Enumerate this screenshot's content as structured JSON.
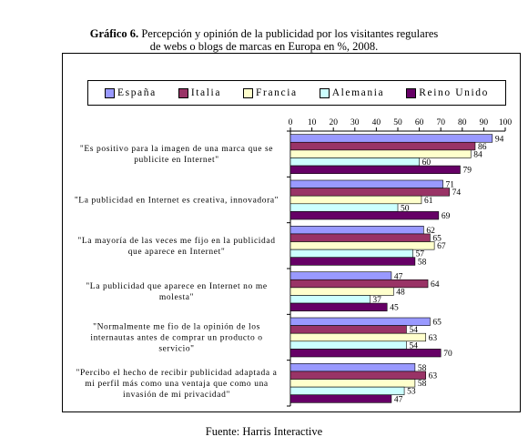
{
  "title": {
    "lead": "Gráfico 6.",
    "line1": "Percepción y opinión de la publicidad por los visitantes regulares",
    "line2": "de webs o blogs de marcas en Europa en %, 2008."
  },
  "source": "Fuente: Harris Interactive",
  "chart_data": {
    "type": "bar",
    "orientation": "horizontal",
    "title": "Percepción y opinión de la publicidad por los visitantes regulares de webs o blogs de marcas en Europa en %, 2008.",
    "xlim": [
      0,
      100
    ],
    "ticks": [
      "0",
      "10",
      "20",
      "30",
      "40",
      "50",
      "60",
      "70",
      "80",
      "90",
      "100"
    ],
    "legend_position": "top",
    "categories": [
      [
        "\"Es positivo para la imagen de una marca que se",
        "publicite en Internet\""
      ],
      [
        "\"La publicidad en Internet es creativa, innovadora\""
      ],
      [
        "\"La mayoría de las veces me fijo en la publicidad",
        "que aparece en Internet\""
      ],
      [
        "\"La publicidad que aparece en Internet no me",
        "molesta\""
      ],
      [
        "\"Normalmente me fio de la opinión de los",
        "internautas antes de comprar un producto o",
        "servicio\""
      ],
      [
        "\"Percibo el hecho de recibir publicidad adaptada a",
        "mi perfil más como una ventaja que como una",
        "invasión de mi privacidad\""
      ]
    ],
    "series": [
      {
        "name": "España",
        "color": "#9999ff",
        "values": [
          94,
          71,
          62,
          47,
          65,
          58
        ]
      },
      {
        "name": "Italia",
        "color": "#993366",
        "values": [
          86,
          74,
          65,
          64,
          54,
          63
        ]
      },
      {
        "name": "Francia",
        "color": "#ffffcc",
        "values": [
          84,
          61,
          67,
          48,
          63,
          58
        ]
      },
      {
        "name": "Alemania",
        "color": "#ccffff",
        "values": [
          60,
          50,
          57,
          37,
          54,
          53
        ]
      },
      {
        "name": "Reino Unido",
        "color": "#660066",
        "values": [
          79,
          69,
          58,
          45,
          70,
          47
        ]
      }
    ]
  }
}
